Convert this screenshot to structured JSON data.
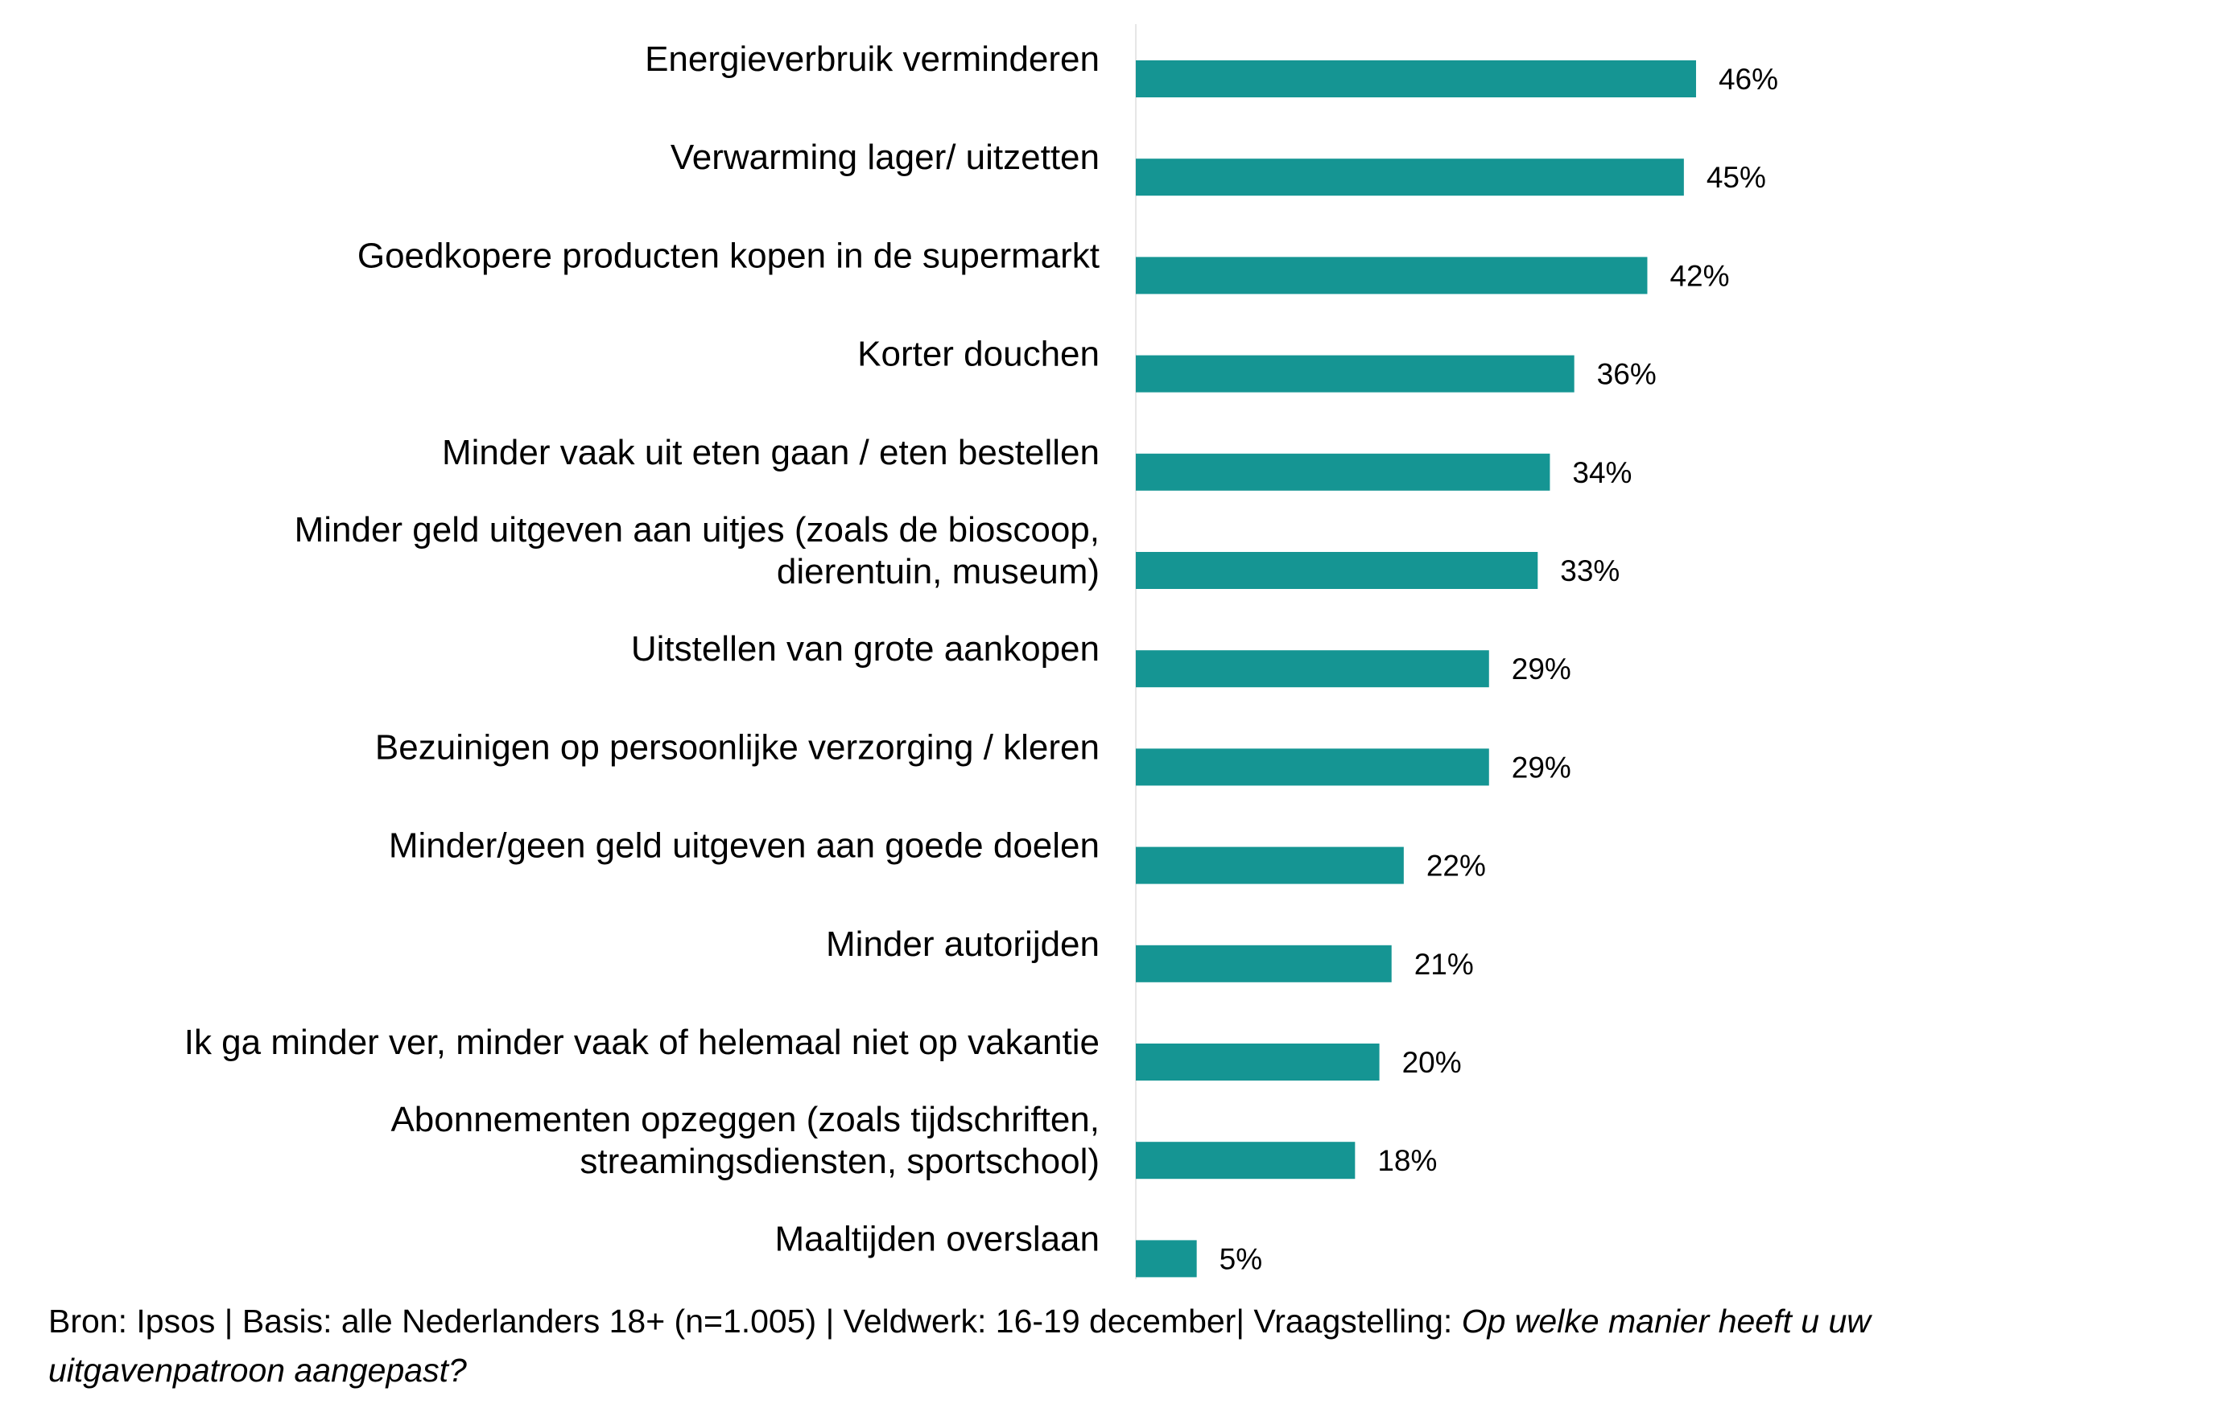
{
  "chart_data": {
    "type": "bar",
    "orientation": "horizontal",
    "categories": [
      [
        "Energieverbruik verminderen"
      ],
      [
        "Verwarming lager/ uitzetten"
      ],
      [
        "Goedkopere producten kopen in de supermarkt"
      ],
      [
        "Korter douchen"
      ],
      [
        "Minder vaak uit eten gaan / eten bestellen"
      ],
      [
        "Minder geld uitgeven aan uitjes (zoals de bioscoop,",
        "dierentuin, museum)"
      ],
      [
        "Uitstellen van grote aankopen"
      ],
      [
        "Bezuinigen op persoonlijke verzorging / kleren"
      ],
      [
        "Minder/geen geld uitgeven aan goede doelen"
      ],
      [
        "Minder autorijden"
      ],
      [
        "Ik ga minder ver, minder vaak of helemaal niet op vakantie"
      ],
      [
        "Abonnementen opzeggen (zoals tijdschriften,",
        "streamingsdiensten, sportschool)"
      ],
      [
        "Maaltijden overslaan"
      ]
    ],
    "values": [
      46,
      45,
      42,
      36,
      34,
      33,
      29,
      29,
      22,
      21,
      20,
      18,
      5
    ],
    "value_labels": [
      "46%",
      "45%",
      "42%",
      "36%",
      "34%",
      "33%",
      "29%",
      "29%",
      "22%",
      "21%",
      "20%",
      "18%",
      "5%"
    ],
    "value_unit": "%",
    "xlim": [
      0,
      50
    ],
    "bar_color": "#159593",
    "axis_line_color": "#e6e6e6",
    "grid": false,
    "legend": "none"
  },
  "footer": {
    "prefix": "Bron: Ipsos | Basis: alle Nederlanders 18+ (n=1.005) | Veldwerk: 16-19 december| Vraagstelling: ",
    "question_line1": "Op welke manier heeft u uw",
    "question_line2": "uitgavenpatroon aangepast?"
  }
}
